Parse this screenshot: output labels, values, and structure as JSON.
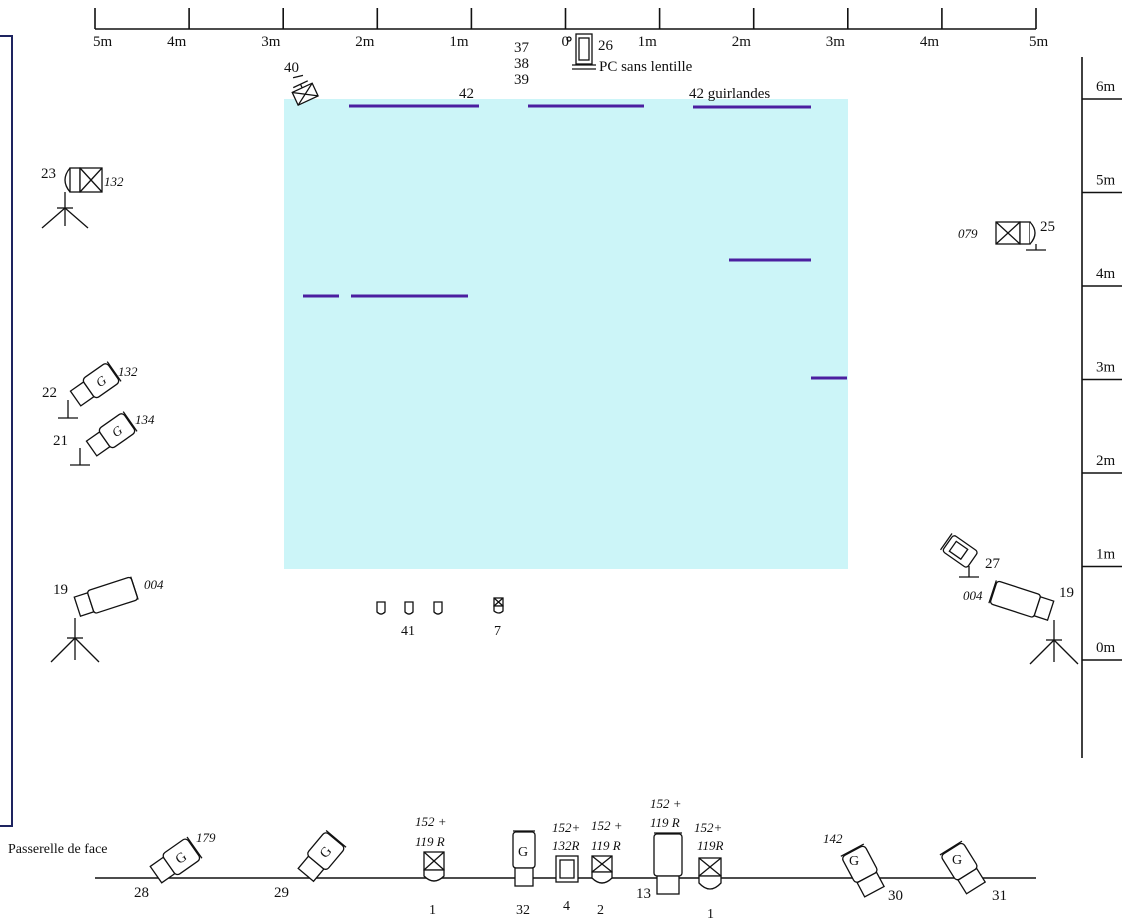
{
  "colors": {
    "stage": "#ccf5f8",
    "bar": "#4b1fa0",
    "line": "#111111",
    "frame": "#1e2460"
  },
  "top_scale": {
    "ticks": [
      "5m",
      "4m",
      "3m",
      "2m",
      "1m",
      "0",
      "1m",
      "2m",
      "3m",
      "4m",
      "5m"
    ]
  },
  "side_scale": {
    "ticks": [
      "6m",
      "5m",
      "4m",
      "3m",
      "2m",
      "1m",
      "0m"
    ]
  },
  "top_labels": {
    "stack_37": "37",
    "stack_38": "38",
    "stack_39": "39",
    "unit_26": "26",
    "pc_note": "PC sans lentille",
    "unit_40": "40",
    "bar_42": "42",
    "bar_42_guirlandes": "42 guirlandes"
  },
  "left_units": {
    "u23": {
      "num": "23",
      "gel": "132"
    },
    "u22": {
      "num": "22",
      "gel": "132"
    },
    "u21": {
      "num": "21",
      "gel": "134"
    },
    "u19": {
      "num": "19",
      "gel": "004"
    }
  },
  "right_units": {
    "u25": {
      "num": "25",
      "gel": "079"
    },
    "u27": {
      "num": "27"
    },
    "u19": {
      "num": "19",
      "gel": "004"
    }
  },
  "floor": {
    "group_41": "41",
    "unit_7": "7"
  },
  "front_rail": {
    "label": "Passerelle de face",
    "units": [
      {
        "num": "28",
        "gel": "179",
        "mark": "G"
      },
      {
        "num": "29",
        "mark": "G"
      },
      {
        "num": "1",
        "gel1": "152 +",
        "gel2": "119 R"
      },
      {
        "num": "32",
        "mark": "G"
      },
      {
        "num": "4",
        "gel1": "152+",
        "gel2": "132R"
      },
      {
        "num": "2",
        "gel1": "152 +",
        "gel2": "119 R"
      },
      {
        "num": "13",
        "gel1": "152 +",
        "gel2": "119 R"
      },
      {
        "num": "1",
        "gel1": "152+",
        "gel2": "119R"
      },
      {
        "num": "30",
        "gel": "142",
        "mark": "G"
      },
      {
        "num": "31",
        "mark": "G"
      }
    ]
  }
}
